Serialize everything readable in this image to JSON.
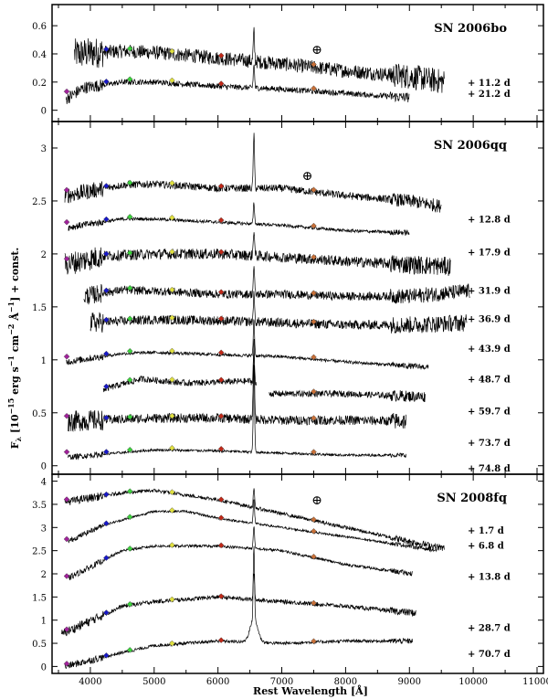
{
  "chart_data": {
    "type": "line",
    "xlabel": "Rest Wavelength [Å]",
    "ylabel_main": "F",
    "ylabel_sub": "λ",
    "ylabel_rest": " [10",
    "ylabel_exp1": "−15",
    "ylabel_mid": " erg s",
    "ylabel_exp2": "−1",
    "ylabel_mid2": " cm",
    "ylabel_exp3": "−2",
    "ylabel_mid3": " Å",
    "ylabel_exp4": "−1",
    "ylabel_end": "] + const.",
    "xlim": [
      3400,
      11100
    ],
    "xticks": [
      4000,
      5000,
      6000,
      7000,
      8000,
      9000,
      10000,
      11000
    ],
    "xtick_labels": [
      "4000",
      "5000",
      "6000",
      "7000",
      "8000",
      "9000",
      "10000",
      "11000"
    ],
    "telluric_symbol": "⊕",
    "panels": [
      {
        "title": "SN 2006bo",
        "ylim": [
          -0.08,
          0.75
        ],
        "yticks": [
          0,
          0.2,
          0.4,
          0.6
        ],
        "ytick_labels": [
          "0",
          "0.2",
          "0.4",
          "0.6"
        ],
        "telluric": {
          "x": 7550,
          "y": 0.4
        },
        "series": [
          {
            "label": "+ 11.2 d",
            "label_y": 0.2,
            "x_start": 3750,
            "x_end": 9550,
            "base": 0.38,
            "noise": 0.05,
            "halpha": 0.2,
            "blue_drop": 0,
            "shape": [
              [
                3750,
                0.4
              ],
              [
                4500,
                0.42
              ],
              [
                5000,
                0.41
              ],
              [
                6000,
                0.37
              ],
              [
                7000,
                0.33
              ],
              [
                8000,
                0.28
              ],
              [
                9000,
                0.24
              ],
              [
                9550,
                0.2
              ]
            ]
          },
          {
            "label": "+ 21.2 d",
            "label_y": 0.12,
            "x_start": 3620,
            "x_end": 9000,
            "base": 0.16,
            "noise": 0.02,
            "halpha": 0.17,
            "blue_drop": 0.08,
            "shape": [
              [
                3620,
                0.08
              ],
              [
                3900,
                0.16
              ],
              [
                4500,
                0.2
              ],
              [
                5000,
                0.2
              ],
              [
                6000,
                0.17
              ],
              [
                7000,
                0.15
              ],
              [
                8000,
                0.12
              ],
              [
                9000,
                0.09
              ]
            ]
          }
        ]
      },
      {
        "title": "SN 2006qq",
        "ylim": [
          -0.08,
          3.25
        ],
        "yticks": [
          0,
          0.5,
          1,
          1.5,
          2,
          2.5,
          3
        ],
        "ytick_labels": [
          "0",
          "0.5",
          "1",
          "1.5",
          "2",
          "2.5",
          "3"
        ],
        "telluric": {
          "x": 7400,
          "y": 2.7
        },
        "series": [
          {
            "label": "+ 12.8 d",
            "label_y": 2.33,
            "x_start": 3600,
            "x_end": 9500,
            "base": 2.6,
            "noise": 0.035,
            "halpha": 0.5,
            "shape": [
              [
                3600,
                2.55
              ],
              [
                4500,
                2.65
              ],
              [
                5000,
                2.66
              ],
              [
                6000,
                2.62
              ],
              [
                7000,
                2.62
              ],
              [
                8000,
                2.55
              ],
              [
                9000,
                2.5
              ],
              [
                9500,
                2.45
              ]
            ]
          },
          {
            "label": "+ 17.9 d",
            "label_y": 2.02,
            "x_start": 3650,
            "x_end": 9000,
            "base": 2.3,
            "noise": 0.015,
            "halpha": 0.2,
            "shape": [
              [
                3650,
                2.25
              ],
              [
                4500,
                2.33
              ],
              [
                5000,
                2.33
              ],
              [
                6000,
                2.3
              ],
              [
                7000,
                2.27
              ],
              [
                8000,
                2.22
              ],
              [
                9000,
                2.2
              ]
            ]
          },
          {
            "label": "+ 31.9 d",
            "label_y": 1.66,
            "x_start": 3600,
            "x_end": 9650,
            "base": 1.98,
            "noise": 0.05,
            "halpha": 0.25,
            "shape": [
              [
                3600,
                1.9
              ],
              [
                4200,
                1.98
              ],
              [
                5000,
                2.0
              ],
              [
                6000,
                2.0
              ],
              [
                7000,
                1.97
              ],
              [
                8000,
                1.93
              ],
              [
                9000,
                1.9
              ],
              [
                9650,
                1.88
              ]
            ]
          },
          {
            "label": "+ 36.9 d",
            "label_y": 1.39,
            "x_start": 3900,
            "x_end": 9950,
            "base": 1.62,
            "noise": 0.04,
            "halpha": 0.25,
            "shape": [
              [
                3900,
                1.6
              ],
              [
                4500,
                1.66
              ],
              [
                5000,
                1.65
              ],
              [
                6000,
                1.62
              ],
              [
                7000,
                1.62
              ],
              [
                8000,
                1.6
              ],
              [
                9000,
                1.6
              ],
              [
                9950,
                1.65
              ]
            ]
          },
          {
            "label": "+ 43.9 d",
            "label_y": 1.11,
            "x_start": 4000,
            "x_end": 9900,
            "base": 1.35,
            "noise": 0.045,
            "halpha": 0.25,
            "shape": [
              [
                4000,
                1.35
              ],
              [
                5000,
                1.38
              ],
              [
                6000,
                1.37
              ],
              [
                7000,
                1.35
              ],
              [
                8000,
                1.33
              ],
              [
                9000,
                1.33
              ],
              [
                9900,
                1.35
              ]
            ]
          },
          {
            "label": "+ 48.7 d",
            "label_y": 0.82,
            "x_start": 3620,
            "x_end": 9300,
            "base": 1.03,
            "noise": 0.015,
            "halpha": 0.35,
            "shape": [
              [
                3620,
                0.98
              ],
              [
                4500,
                1.06
              ],
              [
                5000,
                1.07
              ],
              [
                6000,
                1.05
              ],
              [
                7000,
                1.03
              ],
              [
                8000,
                0.98
              ],
              [
                9300,
                0.93
              ]
            ]
          },
          {
            "label": "+ 59.7 d",
            "label_y": 0.52,
            "x_start": 4200,
            "x_end": 9250,
            "base": 0.8,
            "noise": 0.03,
            "halpha": 0.3,
            "gap": [
              6600,
              6800
            ],
            "shape": [
              [
                4200,
                0.72
              ],
              [
                4800,
                0.82
              ],
              [
                5500,
                0.78
              ],
              [
                6500,
                0.8
              ],
              [
                6800,
                0.68
              ],
              [
                8000,
                0.68
              ],
              [
                9250,
                0.65
              ]
            ]
          },
          {
            "label": "+ 73.7 d",
            "label_y": 0.22,
            "x_start": 3650,
            "x_end": 8950,
            "base": 0.42,
            "noise": 0.045,
            "halpha": 0.75,
            "shape": [
              [
                3650,
                0.42
              ],
              [
                5000,
                0.45
              ],
              [
                6000,
                0.45
              ],
              [
                7000,
                0.43
              ],
              [
                8000,
                0.43
              ],
              [
                8950,
                0.42
              ]
            ]
          },
          {
            "label": "+ 74.8 d",
            "label_y": -0.02,
            "x_start": 3650,
            "x_end": 8950,
            "base": 0.12,
            "noise": 0.012,
            "halpha": 0.85,
            "shape": [
              [
                3650,
                0.08
              ],
              [
                5000,
                0.15
              ],
              [
                6000,
                0.14
              ],
              [
                7000,
                0.12
              ],
              [
                8000,
                0.1
              ],
              [
                8950,
                0.1
              ]
            ]
          }
        ]
      },
      {
        "title": "SN 2008fq",
        "ylim": [
          -0.15,
          4.15
        ],
        "yticks": [
          0,
          0.5,
          1,
          1.5,
          2,
          2.5,
          3,
          3.5,
          4
        ],
        "ytick_labels": [
          "0",
          "0.5",
          "1",
          "1.5",
          "2",
          "2.5",
          "3",
          "3.5",
          "4"
        ],
        "telluric": {
          "x": 7550,
          "y": 3.5
        },
        "series": [
          {
            "label": "+ 1.7 d",
            "label_y": 2.95,
            "x_start": 3600,
            "x_end": 9550,
            "base": 3.6,
            "noise": 0.04,
            "halpha": 0.4,
            "shape": [
              [
                3600,
                3.55
              ],
              [
                4500,
                3.75
              ],
              [
                5000,
                3.8
              ],
              [
                6000,
                3.6
              ],
              [
                7000,
                3.3
              ],
              [
                8000,
                3.0
              ],
              [
                9000,
                2.7
              ],
              [
                9550,
                2.55
              ]
            ]
          },
          {
            "label": "+ 6.8 d",
            "label_y": 2.62,
            "x_start": 3650,
            "x_end": 9450,
            "base": 3.2,
            "noise": 0.025,
            "halpha": 0.55,
            "shape": [
              [
                3650,
                2.7
              ],
              [
                4200,
                3.05
              ],
              [
                5000,
                3.35
              ],
              [
                5500,
                3.35
              ],
              [
                6000,
                3.2
              ],
              [
                7000,
                3.0
              ],
              [
                8000,
                2.8
              ],
              [
                9000,
                2.6
              ],
              [
                9450,
                2.5
              ]
            ]
          },
          {
            "label": "+ 13.8 d",
            "label_y": 1.95,
            "x_start": 3650,
            "x_end": 9050,
            "base": 2.5,
            "noise": 0.03,
            "halpha": 0.5,
            "shape": [
              [
                3650,
                1.9
              ],
              [
                4500,
                2.5
              ],
              [
                5000,
                2.6
              ],
              [
                6000,
                2.6
              ],
              [
                7000,
                2.5
              ],
              [
                8000,
                2.2
              ],
              [
                9050,
                2.0
              ]
            ]
          },
          {
            "label": "+ 28.7 d",
            "label_y": 0.85,
            "x_start": 3550,
            "x_end": 9100,
            "base": 1.3,
            "noise": 0.045,
            "halpha": 0.6,
            "shape": [
              [
                3550,
                0.7
              ],
              [
                4500,
                1.3
              ],
              [
                5000,
                1.4
              ],
              [
                6000,
                1.5
              ],
              [
                7000,
                1.4
              ],
              [
                8000,
                1.3
              ],
              [
                9100,
                1.15
              ]
            ]
          },
          {
            "label": "+ 70.7 d",
            "label_y": 0.28,
            "x_start": 3600,
            "x_end": 9050,
            "base": 0.3,
            "noise": 0.035,
            "halpha": 1.6,
            "shape": [
              [
                3600,
                0.0
              ],
              [
                4500,
                0.3
              ],
              [
                5000,
                0.45
              ],
              [
                6000,
                0.55
              ],
              [
                7000,
                0.5
              ],
              [
                8000,
                0.55
              ],
              [
                9050,
                0.55
              ]
            ]
          }
        ]
      }
    ]
  },
  "colors": {
    "frame": "#000000",
    "spectrum": "#000000",
    "markers": [
      "#a0229a",
      "#1818c8",
      "#3cd13c",
      "#e0e040",
      "#c02818",
      "#c87038"
    ]
  },
  "marker_x": [
    3630,
    4250,
    4620,
    5280,
    6050,
    7500
  ]
}
